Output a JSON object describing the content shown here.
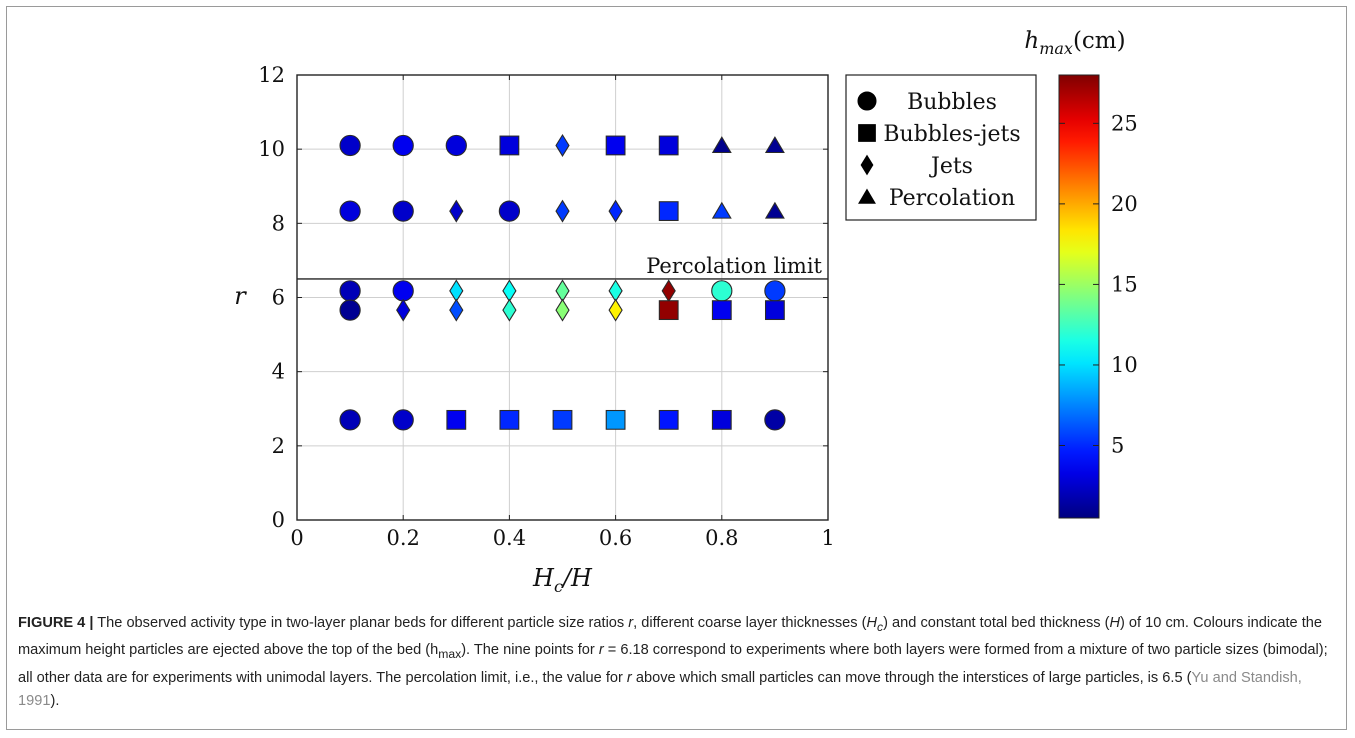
{
  "chart_data": {
    "type": "scatter",
    "xlabel": "H_c/H",
    "ylabel": "r",
    "xlim": [
      0,
      1
    ],
    "ylim": [
      0,
      12
    ],
    "xticks": [
      "0",
      "0.2",
      "0.4",
      "0.6",
      "0.8",
      "1"
    ],
    "yticks": [
      "0",
      "2",
      "4",
      "6",
      "8",
      "10",
      "12"
    ],
    "grid": true,
    "colorbar": {
      "label": "h_max(cm)",
      "range": [
        0.5,
        28
      ],
      "ticks": [
        "5",
        "10",
        "15",
        "20",
        "25"
      ],
      "colormap": "jet"
    },
    "annotation": {
      "text": "Percolation limit",
      "y": 6.5
    },
    "legend": {
      "placement": "upper-right-outside",
      "entries": [
        {
          "marker": "circle",
          "label": "Bubbles"
        },
        {
          "marker": "square",
          "label": "Bubbles-jets"
        },
        {
          "marker": "diamond",
          "label": "Jets"
        },
        {
          "marker": "triangle",
          "label": "Percolation"
        }
      ]
    },
    "points": [
      {
        "x": 0.1,
        "y": 10.1,
        "type": "circle",
        "hmax": 2.5
      },
      {
        "x": 0.2,
        "y": 10.1,
        "type": "circle",
        "hmax": 3.5
      },
      {
        "x": 0.3,
        "y": 10.1,
        "type": "circle",
        "hmax": 3.0
      },
      {
        "x": 0.4,
        "y": 10.1,
        "type": "square",
        "hmax": 3.0
      },
      {
        "x": 0.5,
        "y": 10.1,
        "type": "diamond",
        "hmax": 5.5
      },
      {
        "x": 0.6,
        "y": 10.1,
        "type": "square",
        "hmax": 3.5
      },
      {
        "x": 0.7,
        "y": 10.1,
        "type": "square",
        "hmax": 3.0
      },
      {
        "x": 0.8,
        "y": 10.1,
        "type": "triangle",
        "hmax": 0.8
      },
      {
        "x": 0.9,
        "y": 10.1,
        "type": "triangle",
        "hmax": 1.0
      },
      {
        "x": 0.1,
        "y": 8.33,
        "type": "circle",
        "hmax": 3.0
      },
      {
        "x": 0.2,
        "y": 8.33,
        "type": "circle",
        "hmax": 2.5
      },
      {
        "x": 0.3,
        "y": 8.33,
        "type": "diamond",
        "hmax": 2.5
      },
      {
        "x": 0.4,
        "y": 8.33,
        "type": "circle",
        "hmax": 2.5
      },
      {
        "x": 0.5,
        "y": 8.33,
        "type": "diamond",
        "hmax": 5.5
      },
      {
        "x": 0.6,
        "y": 8.33,
        "type": "diamond",
        "hmax": 5.0
      },
      {
        "x": 0.7,
        "y": 8.33,
        "type": "square",
        "hmax": 5.0
      },
      {
        "x": 0.8,
        "y": 8.33,
        "type": "triangle",
        "hmax": 5.5
      },
      {
        "x": 0.9,
        "y": 8.33,
        "type": "triangle",
        "hmax": 1.0
      },
      {
        "x": 0.1,
        "y": 6.18,
        "type": "circle",
        "hmax": 2.0
      },
      {
        "x": 0.2,
        "y": 6.18,
        "type": "circle",
        "hmax": 3.5
      },
      {
        "x": 0.3,
        "y": 6.18,
        "type": "diamond",
        "hmax": 10.0
      },
      {
        "x": 0.4,
        "y": 6.18,
        "type": "diamond",
        "hmax": 11.0
      },
      {
        "x": 0.5,
        "y": 6.18,
        "type": "diamond",
        "hmax": 13.5
      },
      {
        "x": 0.6,
        "y": 6.18,
        "type": "diamond",
        "hmax": 11.5
      },
      {
        "x": 0.7,
        "y": 6.18,
        "type": "diamond",
        "hmax": 27.5
      },
      {
        "x": 0.8,
        "y": 6.18,
        "type": "circle",
        "hmax": 12.0
      },
      {
        "x": 0.9,
        "y": 6.18,
        "type": "circle",
        "hmax": 5.5
      },
      {
        "x": 0.1,
        "y": 5.66,
        "type": "circle",
        "hmax": 1.0
      },
      {
        "x": 0.2,
        "y": 5.66,
        "type": "diamond",
        "hmax": 3.0
      },
      {
        "x": 0.3,
        "y": 5.66,
        "type": "diamond",
        "hmax": 6.0
      },
      {
        "x": 0.4,
        "y": 5.66,
        "type": "diamond",
        "hmax": 12.0
      },
      {
        "x": 0.5,
        "y": 5.66,
        "type": "diamond",
        "hmax": 14.5
      },
      {
        "x": 0.6,
        "y": 5.66,
        "type": "diamond",
        "hmax": 18.0
      },
      {
        "x": 0.7,
        "y": 5.66,
        "type": "square",
        "hmax": 27.5
      },
      {
        "x": 0.8,
        "y": 5.66,
        "type": "square",
        "hmax": 3.5
      },
      {
        "x": 0.9,
        "y": 5.66,
        "type": "square",
        "hmax": 3.0
      },
      {
        "x": 0.1,
        "y": 2.7,
        "type": "circle",
        "hmax": 2.0
      },
      {
        "x": 0.2,
        "y": 2.7,
        "type": "circle",
        "hmax": 2.5
      },
      {
        "x": 0.3,
        "y": 2.7,
        "type": "square",
        "hmax": 3.5
      },
      {
        "x": 0.4,
        "y": 2.7,
        "type": "square",
        "hmax": 5.0
      },
      {
        "x": 0.5,
        "y": 2.7,
        "type": "square",
        "hmax": 5.5
      },
      {
        "x": 0.6,
        "y": 2.7,
        "type": "square",
        "hmax": 8.0
      },
      {
        "x": 0.7,
        "y": 2.7,
        "type": "square",
        "hmax": 4.5
      },
      {
        "x": 0.8,
        "y": 2.7,
        "type": "square",
        "hmax": 3.0
      },
      {
        "x": 0.9,
        "y": 2.7,
        "type": "circle",
        "hmax": 1.5
      }
    ]
  },
  "caption": {
    "label": "FIGURE 4 |",
    "text_1": " The observed activity type in two-layer planar beds for different particle size ratios ",
    "r_1": "r",
    "text_2": ", different coarse layer thicknesses (",
    "hc": "H",
    "hc_sub": "c",
    "text_3": ") and constant total bed thickness (",
    "h": "H",
    "text_4": ") of 10 cm. Colours indicate the maximum height particles are ejected above the top of the bed (h",
    "hmax_sub": "max",
    "text_5": "). The nine points for ",
    "r_2": "r",
    "text_6": " = 6.18 correspond to experiments where both layers were formed from a mixture of two particle sizes (bimodal); all other data are for experiments with unimodal layers. The percolation limit, i.e., the value for ",
    "r_3": "r",
    "text_7": " above which small particles can move through the interstices of large particles, is 6.5 (",
    "citation": "Yu and Standish, 1991",
    "text_8": ")."
  }
}
